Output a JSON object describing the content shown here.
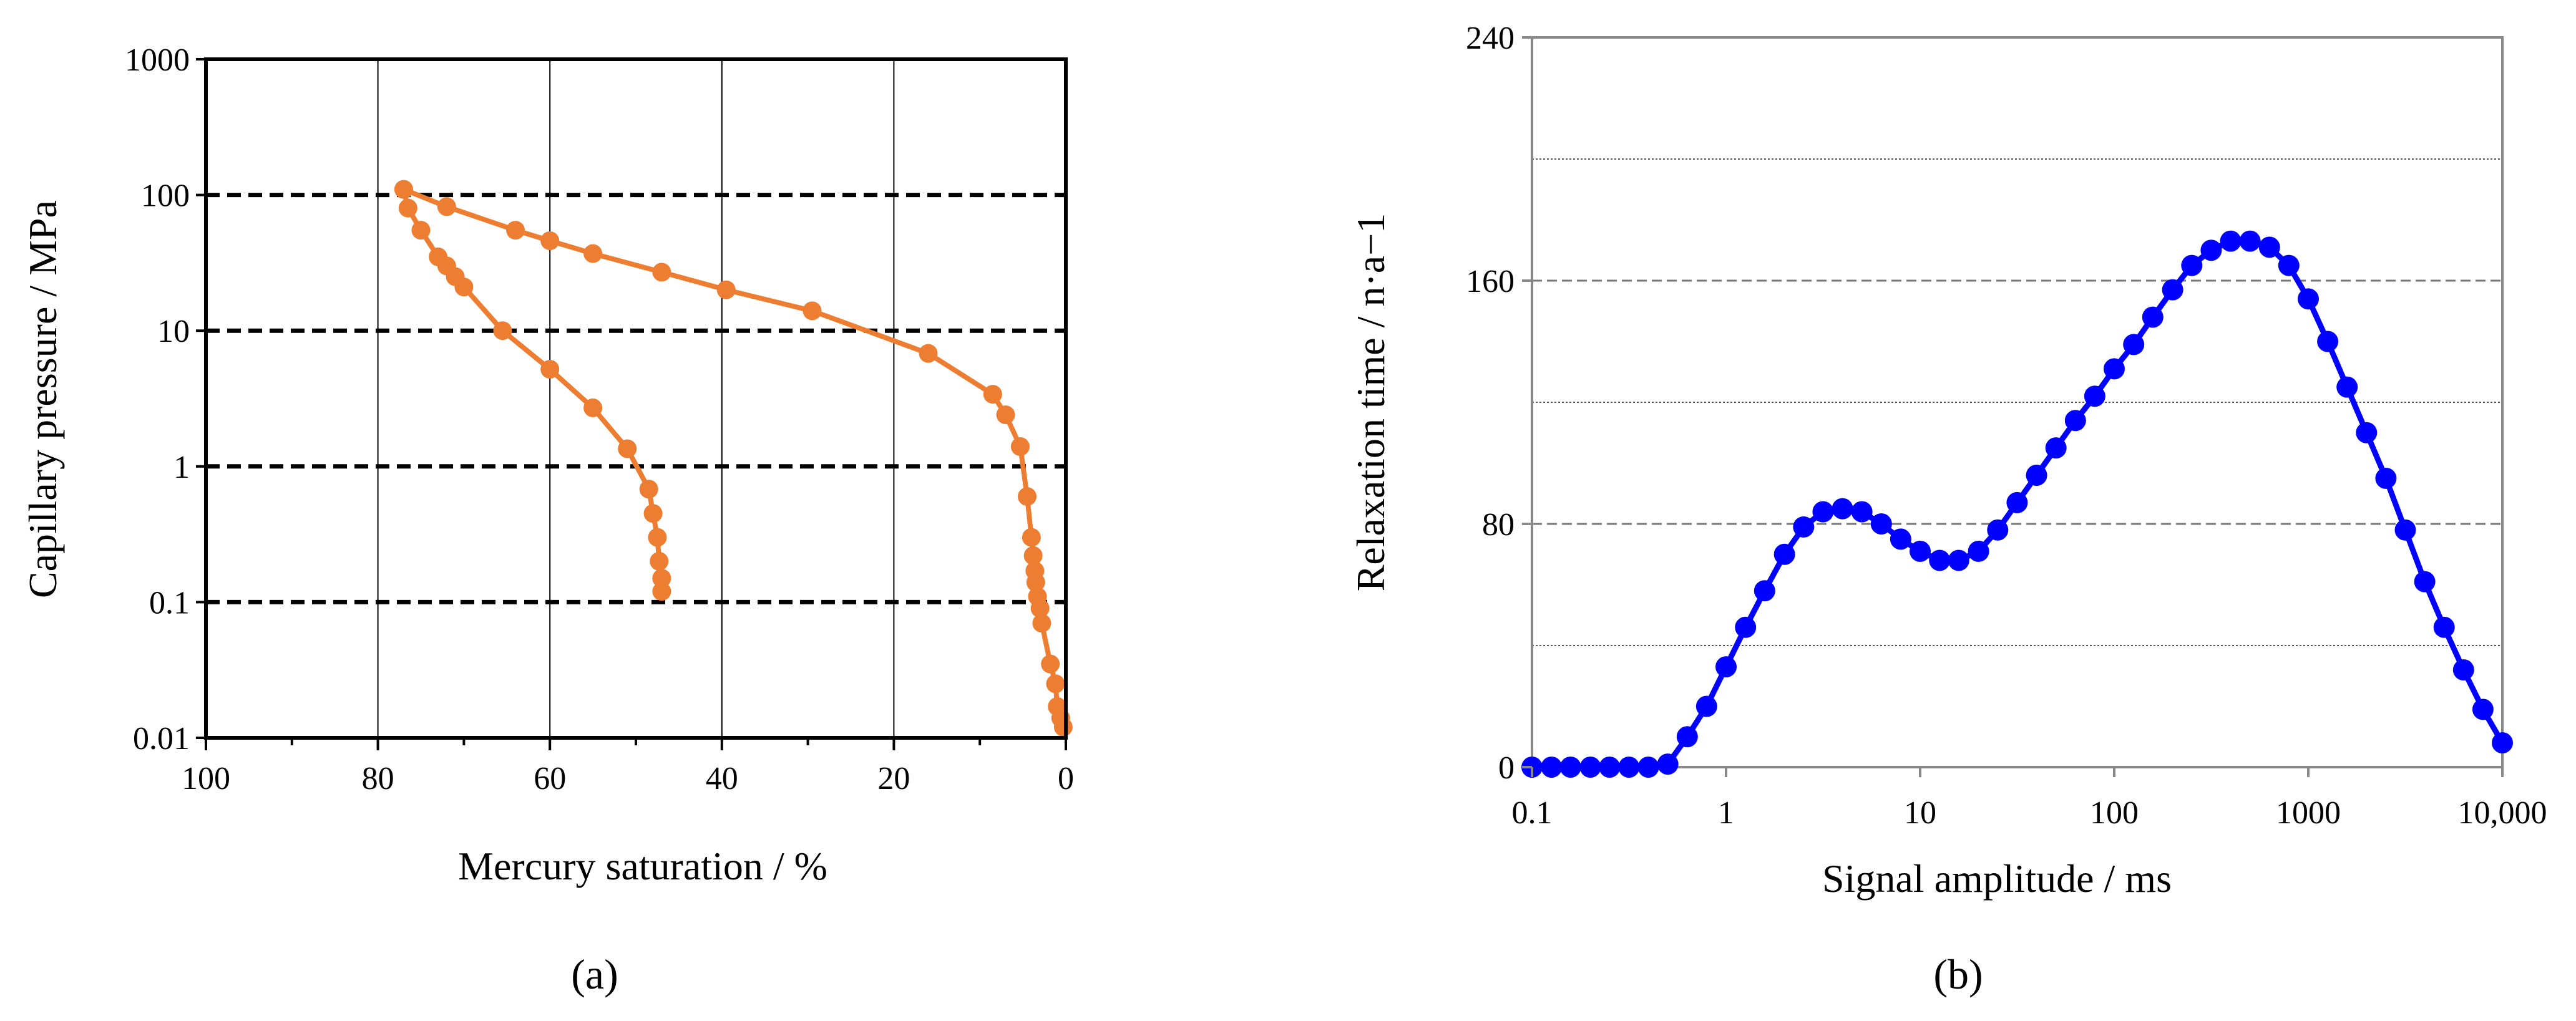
{
  "chart_data": [
    {
      "type": "line",
      "panel_label": "(a)",
      "xlabel": "Mercury saturation / %",
      "ylabel": "Capillary pressure / MPa",
      "x_scale": "linear",
      "x_reversed": true,
      "xlim": [
        100,
        0
      ],
      "x_ticks": [
        "100",
        "80",
        "60",
        "40",
        "20",
        "0"
      ],
      "y_scale": "log",
      "ylim": [
        0.01,
        1000
      ],
      "y_ticks": [
        "0.01",
        "0.1",
        "1",
        "10",
        "100",
        "1000"
      ],
      "grid": "dashed horizontal at 0.1, 1, 10, 100; thin vertical at 80, 60, 40, 20",
      "color": "#ED7D31",
      "series": [
        {
          "points": [
            [
              0.3,
              0.012
            ],
            [
              0.6,
              0.014
            ],
            [
              1.0,
              0.017
            ],
            [
              1.2,
              0.025
            ],
            [
              1.8,
              0.035
            ],
            [
              2.8,
              0.07
            ],
            [
              3.0,
              0.09
            ],
            [
              3.3,
              0.11
            ],
            [
              3.5,
              0.14
            ],
            [
              3.6,
              0.17
            ],
            [
              3.8,
              0.22
            ],
            [
              4.0,
              0.3
            ],
            [
              4.5,
              0.6
            ],
            [
              5.3,
              1.4
            ],
            [
              7.0,
              2.4
            ],
            [
              8.5,
              3.4
            ],
            [
              16.0,
              6.8
            ],
            [
              29.5,
              14
            ],
            [
              39.5,
              20
            ],
            [
              47.0,
              27
            ],
            [
              55.0,
              37
            ],
            [
              60.0,
              46
            ],
            [
              64.0,
              55
            ],
            [
              72.0,
              82
            ],
            [
              77.0,
              110
            ]
          ]
        },
        {
          "points": [
            [
              77.0,
              110
            ],
            [
              76.5,
              80
            ],
            [
              75.0,
              55
            ],
            [
              73.0,
              35
            ],
            [
              72.0,
              30
            ],
            [
              71.0,
              25
            ],
            [
              70.0,
              21
            ],
            [
              65.5,
              10
            ],
            [
              60.0,
              5.2
            ],
            [
              55.0,
              2.7
            ],
            [
              51.0,
              1.35
            ],
            [
              48.5,
              0.68
            ],
            [
              48.0,
              0.45
            ],
            [
              47.5,
              0.3
            ],
            [
              47.3,
              0.2
            ],
            [
              47.0,
              0.15
            ],
            [
              47.0,
              0.12
            ]
          ]
        }
      ]
    },
    {
      "type": "line",
      "panel_label": "(b)",
      "xlabel": "Signal amplitude / ms",
      "ylabel": "Relaxation time / n·a−1",
      "x_scale": "log",
      "xlim": [
        0.1,
        10000
      ],
      "x_ticks": [
        "0.1",
        "1",
        "10",
        "100",
        "1000",
        "10,000"
      ],
      "ylim": [
        0,
        240
      ],
      "y_ticks": [
        "0",
        "80",
        "160",
        "240"
      ],
      "grid": "horizontal lines every 40 (dashed at 80 and 160, dotted at 40, 120, 200)",
      "color": "#0000FF",
      "series": [
        {
          "x": [
            0.1,
            0.126,
            0.158,
            0.2,
            0.251,
            0.316,
            0.398,
            0.501,
            0.631,
            0.794,
            1.0,
            1.26,
            1.58,
            2.0,
            2.51,
            3.16,
            3.98,
            5.01,
            6.31,
            7.94,
            10,
            12.6,
            15.8,
            20,
            25.1,
            31.6,
            39.8,
            50.1,
            63.1,
            79.4,
            100,
            126,
            158,
            200,
            251,
            316,
            398,
            501,
            631,
            794,
            1000,
            1259,
            1585,
            1995,
            2512,
            3162,
            3981,
            5012,
            6310,
            7943,
            10000
          ],
          "y": [
            0,
            0,
            0,
            0,
            0,
            0,
            0,
            1,
            10,
            20,
            33,
            46,
            58,
            70,
            79,
            84,
            85,
            84,
            80,
            75,
            71,
            68,
            68,
            71,
            78,
            87,
            96,
            105,
            114,
            122,
            131,
            139,
            148,
            157,
            165,
            170,
            173,
            173,
            171,
            165,
            154,
            140,
            125,
            110,
            95,
            78,
            61,
            46,
            32,
            19,
            8
          ]
        }
      ]
    }
  ]
}
